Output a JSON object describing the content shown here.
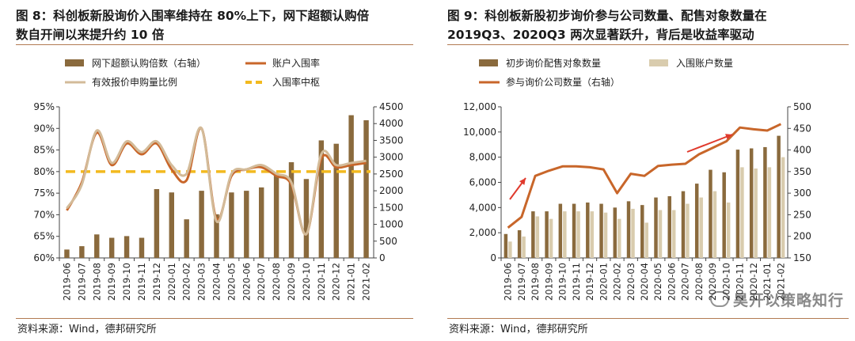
{
  "colors": {
    "bar_brown": "#8a6a3d",
    "bar_beige": "#d9ccae",
    "line_orange": "#c8662a",
    "line_tan": "#d3bb99",
    "dash_yellow": "#f2b91f",
    "arrow_red": "#e03a2d",
    "rule": "#b27a52"
  },
  "left": {
    "title_line1": "图 8：科创板新股询价入围率维持在 80%上下，网下超额认购倍",
    "title_line2": "数自开闸以来提升约 10 倍",
    "source": "资料来源：Wind，德邦研究所"
  },
  "right": {
    "title_line1": "图 9：科创板新股初步询价参与公司数量、配售对象数量在",
    "title_line2": "2019Q3、2020Q3 两次显著跃升，背后是收益率驱动",
    "source": "资料来源：Wind，德邦研究所"
  },
  "watermark": "昊开以策略知行",
  "chart_data": [
    {
      "type": "bar+line",
      "title": "科创板新股询价入围率维持在80%上下，网下超额认购倍数自开闸以来提升约10倍",
      "categories": [
        "2019-06",
        "2019-07",
        "2019-08",
        "2019-09",
        "2019-10",
        "2019-11",
        "2019-12",
        "2020-01",
        "2020-02",
        "2020-03",
        "2020-04",
        "2020-05",
        "2020-06",
        "2020-07",
        "2020-08",
        "2020-09",
        "2020-10",
        "2020-11",
        "2020-12",
        "2021-01",
        "2021-02"
      ],
      "y_left": {
        "ticks": [
          "95%",
          "90%",
          "85%",
          "80%",
          "75%",
          "70%",
          "65%",
          "60%"
        ],
        "ylim": [
          60,
          95
        ]
      },
      "y_right": {
        "ticks": [
          "4500",
          "4000",
          "3500",
          "3000",
          "2500",
          "2000",
          "1500",
          "1000",
          "500",
          "0"
        ],
        "ylim": [
          0,
          4500
        ]
      },
      "center_line": {
        "name": "入围率中枢",
        "value": 80.0
      },
      "series": [
        {
          "name": "网下超额认购倍数（右轴）",
          "kind": "bar",
          "axis": "right",
          "values": [
            250,
            350,
            700,
            600,
            650,
            600,
            2050,
            1950,
            1150,
            2000,
            1300,
            1950,
            2000,
            2100,
            2500,
            2850,
            2350,
            3500,
            3400,
            4250,
            4100
          ]
        },
        {
          "name": "账户入围率",
          "kind": "line",
          "axis": "left",
          "values": [
            71.0,
            77.5,
            89.0,
            81.5,
            86.5,
            84.0,
            86.5,
            80.5,
            78.0,
            90.0,
            69.0,
            79.0,
            80.5,
            81.0,
            79.0,
            77.0,
            65.5,
            83.0,
            81.0,
            81.5,
            82.0
          ]
        },
        {
          "name": "有效报价申购量比例",
          "kind": "line",
          "axis": "left",
          "values": [
            71.5,
            77.0,
            89.5,
            82.0,
            87.0,
            84.5,
            87.0,
            81.5,
            79.5,
            90.0,
            68.5,
            79.5,
            80.5,
            81.5,
            79.5,
            77.5,
            65.5,
            84.0,
            81.5,
            82.0,
            82.5
          ]
        }
      ]
    },
    {
      "type": "bar+line",
      "title": "科创板新股初步询价参与公司数量、配售对象数量",
      "categories": [
        "2019-06",
        "2019-07",
        "2019-08",
        "2019-09",
        "2019-10",
        "2019-11",
        "2019-12",
        "2020-01",
        "2020-02",
        "2020-03",
        "2020-04",
        "2020-05",
        "2020-06",
        "2020-07",
        "2020-08",
        "2020-09",
        "2020-10",
        "2020-11",
        "2020-12",
        "2021-01",
        "2021-02"
      ],
      "y_left": {
        "ticks": [
          "12,000",
          "10,000",
          "8,000",
          "6,000",
          "4,000",
          "2,000",
          "0"
        ],
        "ylim": [
          0,
          12000
        ]
      },
      "y_right": {
        "ticks": [
          "500",
          "450",
          "400",
          "350",
          "300",
          "250",
          "200",
          "150"
        ],
        "ylim": [
          150,
          500
        ]
      },
      "series": [
        {
          "name": "初步询价配售对象数量",
          "kind": "bar",
          "axis": "left",
          "values": [
            1900,
            2200,
            3700,
            3700,
            4300,
            4300,
            4400,
            4300,
            4000,
            4500,
            4200,
            4800,
            4900,
            5300,
            5900,
            7000,
            6800,
            8600,
            8700,
            8800,
            9700
          ]
        },
        {
          "name": "入围账户数量",
          "kind": "bar",
          "axis": "left",
          "values": [
            1300,
            1700,
            3300,
            3100,
            3700,
            3700,
            3700,
            3600,
            3100,
            3900,
            2800,
            3800,
            3800,
            4300,
            4800,
            5300,
            4400,
            7200,
            7100,
            7200,
            8000
          ]
        },
        {
          "name": "参与询价公司数量（右轴）",
          "kind": "line",
          "axis": "right",
          "values": [
            220,
            245,
            340,
            352,
            362,
            362,
            360,
            355,
            300,
            345,
            340,
            363,
            366,
            368,
            390,
            405,
            420,
            452,
            448,
            445,
            460
          ]
        }
      ],
      "annotations": [
        "arrow-2019Q3",
        "arrow-2020Q3"
      ]
    }
  ]
}
